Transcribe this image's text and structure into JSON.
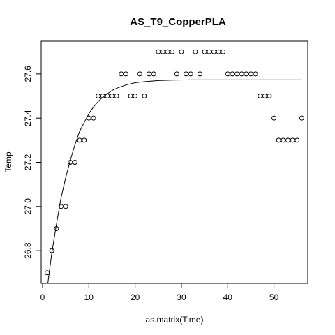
{
  "chart_data": {
    "type": "scatter",
    "title": "AS_T9_CopperPLA",
    "xlabel": "as.matrix(Time)",
    "ylabel": "Temp",
    "xlim": [
      -0.3,
      57.3
    ],
    "ylim": [
      26.652,
      27.748
    ],
    "xticks": [
      0,
      10,
      20,
      30,
      40,
      50
    ],
    "yticks": [
      26.8,
      27.0,
      27.2,
      27.4,
      27.6
    ],
    "xtick_labels": [
      "0",
      "10",
      "20",
      "30",
      "40",
      "50"
    ],
    "ytick_labels": [
      "26.8",
      "27.0",
      "27.2",
      "27.4",
      "27.6"
    ],
    "grid": false,
    "legend": "none",
    "points": {
      "x": [
        1,
        2,
        3,
        4,
        5,
        6,
        7,
        8,
        9,
        10,
        11,
        12,
        13,
        14,
        15,
        16,
        17,
        18,
        19,
        20,
        21,
        22,
        23,
        24,
        25,
        26,
        27,
        28,
        29,
        30,
        31,
        32,
        33,
        34,
        35,
        36,
        37,
        38,
        39,
        40,
        41,
        42,
        43,
        44,
        45,
        46,
        47,
        48,
        49,
        50,
        51,
        52,
        53,
        54,
        55,
        56
      ],
      "y": [
        26.7,
        26.8,
        26.9,
        27.0,
        27.0,
        27.2,
        27.2,
        27.3,
        27.3,
        27.4,
        27.4,
        27.5,
        27.5,
        27.5,
        27.5,
        27.5,
        27.6,
        27.6,
        27.5,
        27.5,
        27.6,
        27.5,
        27.6,
        27.6,
        27.7,
        27.7,
        27.7,
        27.7,
        27.6,
        27.7,
        27.6,
        27.6,
        27.7,
        27.6,
        27.7,
        27.7,
        27.7,
        27.7,
        27.7,
        27.6,
        27.6,
        27.6,
        27.6,
        27.6,
        27.6,
        27.6,
        27.5,
        27.5,
        27.5,
        27.4,
        27.3,
        27.3,
        27.3,
        27.3,
        27.3,
        27.4
      ]
    },
    "fit_curve": {
      "x": [
        1,
        1.5,
        2,
        3,
        4,
        5,
        6,
        7,
        8,
        9,
        10,
        11,
        12,
        13,
        14,
        15,
        16,
        18,
        20,
        22,
        25,
        28,
        32,
        36,
        40,
        45,
        50,
        56
      ],
      "y": [
        26.63,
        26.71,
        26.79,
        26.92,
        27.04,
        27.13,
        27.21,
        27.28,
        27.34,
        27.38,
        27.42,
        27.45,
        27.475,
        27.495,
        27.51,
        27.525,
        27.535,
        27.55,
        27.56,
        27.565,
        27.57,
        27.572,
        27.573,
        27.573,
        27.573,
        27.573,
        27.573,
        27.573
      ]
    }
  }
}
